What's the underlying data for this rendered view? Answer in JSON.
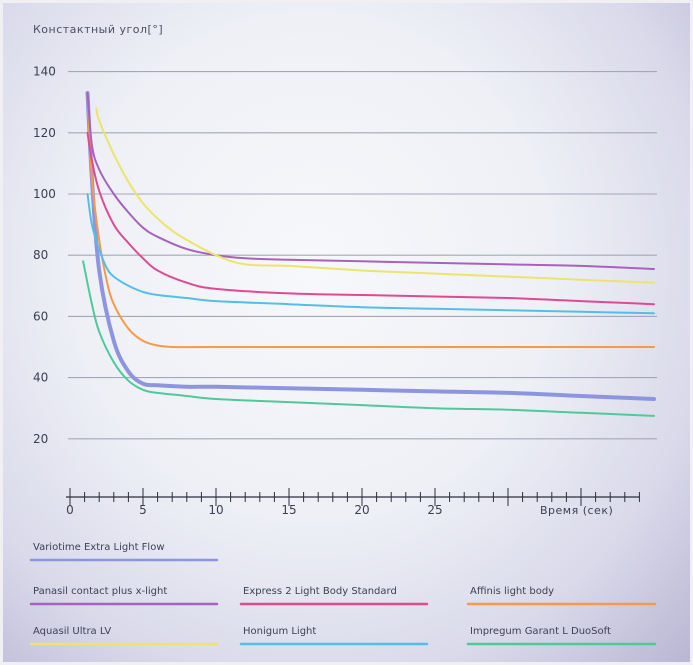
{
  "chart_data": {
    "type": "line",
    "ylabel": "Констактный угол[°]",
    "xlabel": "Время  (сек)",
    "ylim": [
      0,
      140
    ],
    "xlim": [
      0,
      40
    ],
    "yticks": [
      "140",
      "120",
      "100",
      "80",
      "60",
      "40",
      "20"
    ],
    "xticks": [
      "0",
      "5",
      "10",
      "15",
      "20",
      "25"
    ],
    "grid": true,
    "legend": "bottom",
    "series": [
      {
        "name": "Variotime Extra Light Flow",
        "color": "#8e95df",
        "x": [
          1.2,
          1.5,
          2,
          3,
          4,
          5,
          6,
          8,
          10,
          15,
          20,
          25,
          30,
          35,
          40
        ],
        "y": [
          133,
          105,
          75,
          52,
          42,
          38,
          37.5,
          37,
          37,
          36.5,
          36,
          35.5,
          35,
          34,
          33
        ]
      },
      {
        "name": "Panasil contact plus x-light",
        "color": "#a663bd",
        "x": [
          1.2,
          1.5,
          2,
          3,
          4,
          5,
          6,
          8,
          10,
          12,
          15,
          20,
          25,
          30,
          35,
          40
        ],
        "y": [
          133,
          116,
          108,
          100,
          94,
          89,
          86,
          82,
          80,
          79,
          78.5,
          78,
          77.5,
          77,
          76.5,
          75.5
        ]
      },
      {
        "name": "Express 2 Light Body Standard",
        "color": "#e04a93",
        "x": [
          1.2,
          1.5,
          2,
          3,
          4,
          5,
          6,
          8,
          10,
          15,
          20,
          25,
          30,
          35,
          40
        ],
        "y": [
          120,
          111,
          101,
          90,
          84,
          79,
          75,
          71,
          69,
          67.5,
          67,
          66.5,
          66,
          65,
          64
        ]
      },
      {
        "name": "Affinis light body",
        "color": "#f49a49",
        "x": [
          1.2,
          1.5,
          2,
          2.5,
          3,
          4,
          5,
          6,
          7,
          10,
          20,
          30,
          40
        ],
        "y": [
          133,
          105,
          85,
          72,
          64,
          56,
          52,
          50.5,
          50,
          50,
          50,
          50,
          50
        ]
      },
      {
        "name": "Aquasil Ultra LV",
        "color": "#ece46f",
        "x": [
          1.8,
          2,
          3,
          4,
          5,
          6,
          7,
          8,
          10,
          12,
          15,
          20,
          25,
          30,
          35,
          40
        ],
        "y": [
          128,
          124,
          113,
          104,
          97,
          92,
          88,
          85,
          80,
          77,
          76.5,
          75,
          74,
          73,
          72,
          71
        ]
      },
      {
        "name": "Honigum Light",
        "color": "#53bfe8",
        "x": [
          1.2,
          1.5,
          2,
          2.5,
          3,
          4,
          5,
          6,
          8,
          10,
          15,
          20,
          25,
          30,
          35,
          40
        ],
        "y": [
          100,
          90,
          82,
          76,
          73,
          70,
          68,
          67,
          66,
          65,
          64,
          63,
          62.5,
          62,
          61.5,
          61
        ]
      },
      {
        "name": "Impregum Garant L DuoSoft",
        "color": "#4fc99a",
        "x": [
          0.9,
          1.5,
          2,
          3,
          4,
          5,
          6,
          8,
          10,
          15,
          20,
          25,
          30,
          35,
          40
        ],
        "y": [
          78,
          64,
          55,
          45,
          39,
          36,
          35,
          34,
          33,
          32,
          31,
          30,
          29.5,
          28.5,
          27.5
        ]
      }
    ]
  }
}
